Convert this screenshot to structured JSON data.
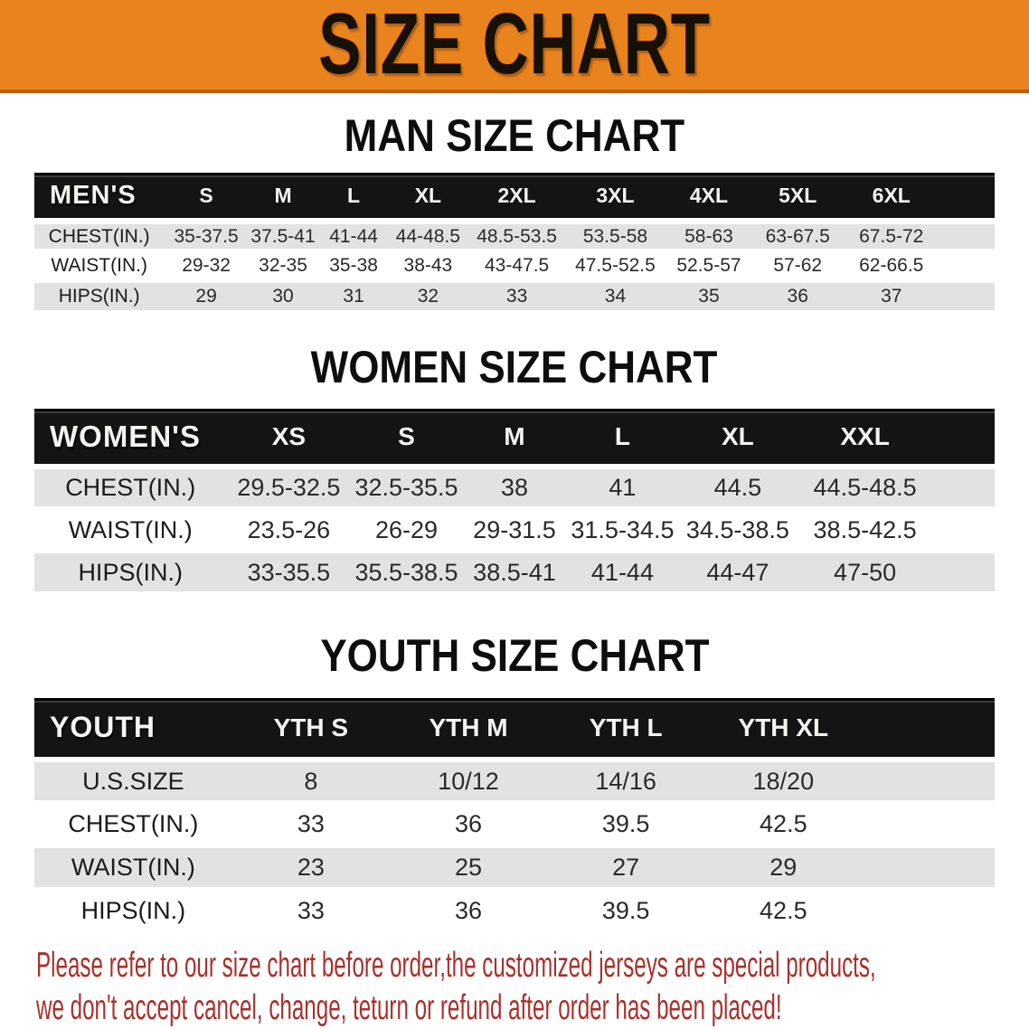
{
  "banner": {
    "title": "SIZE CHART"
  },
  "colors": {
    "banner-orange": "#E8831E",
    "banner-edge": "#BC5F10",
    "header-black": "#141414",
    "row-gray": "#E2E2E2",
    "footer-red": "#A8312C"
  },
  "sections": [
    {
      "heading": "MAN SIZE CHART",
      "table": {
        "label": "MEN'S",
        "columns": [
          "S",
          "M",
          "L",
          "XL",
          "2XL",
          "3XL",
          "4XL",
          "5XL",
          "6XL"
        ],
        "rows": [
          {
            "label": "CHEST(IN.)",
            "values": [
              "35-37.5",
              "37.5-41",
              "41-44",
              "44-48.5",
              "48.5-53.5",
              "53.5-58",
              "58-63",
              "63-67.5",
              "67.5-72"
            ]
          },
          {
            "label": "WAIST(IN.)",
            "values": [
              "29-32",
              "32-35",
              "35-38",
              "38-43",
              "43-47.5",
              "47.5-52.5",
              "52.5-57",
              "57-62",
              "62-66.5"
            ]
          },
          {
            "label": "HIPS(IN.)",
            "values": [
              "29",
              "30",
              "31",
              "32",
              "33",
              "34",
              "35",
              "36",
              "37"
            ]
          }
        ]
      }
    },
    {
      "heading": "WOMEN SIZE CHART",
      "table": {
        "label": "WOMEN'S",
        "columns": [
          "XS",
          "S",
          "M",
          "L",
          "XL",
          "XXL"
        ],
        "rows": [
          {
            "label": "CHEST(IN.)",
            "values": [
              "29.5-32.5",
              "32.5-35.5",
              "38",
              "41",
              "44.5",
              "44.5-48.5"
            ]
          },
          {
            "label": "WAIST(IN.)",
            "values": [
              "23.5-26",
              "26-29",
              "29-31.5",
              "31.5-34.5",
              "34.5-38.5",
              "38.5-42.5"
            ]
          },
          {
            "label": "HIPS(IN.)",
            "values": [
              "33-35.5",
              "35.5-38.5",
              "38.5-41",
              "41-44",
              "44-47",
              "47-50"
            ]
          }
        ]
      }
    },
    {
      "heading": "YOUTH SIZE CHART",
      "table": {
        "label": "YOUTH",
        "columns": [
          "YTH S",
          "YTH M",
          "YTH L",
          "YTH XL"
        ],
        "rows": [
          {
            "label": "U.S.SIZE",
            "values": [
              "8",
              "10/12",
              "14/16",
              "18/20"
            ]
          },
          {
            "label": "CHEST(IN.)",
            "values": [
              "33",
              "36",
              "39.5",
              "42.5"
            ]
          },
          {
            "label": "WAIST(IN.)",
            "values": [
              "23",
              "25",
              "27",
              "29"
            ]
          },
          {
            "label": "HIPS(IN.)",
            "values": [
              "33",
              "36",
              "39.5",
              "42.5"
            ]
          }
        ]
      }
    }
  ],
  "footer": {
    "lines": [
      "Please refer to our size chart before order,the customized jerseys are special products,",
      "we don't accept cancel, change, teturn or refund after order has been placed!"
    ]
  }
}
